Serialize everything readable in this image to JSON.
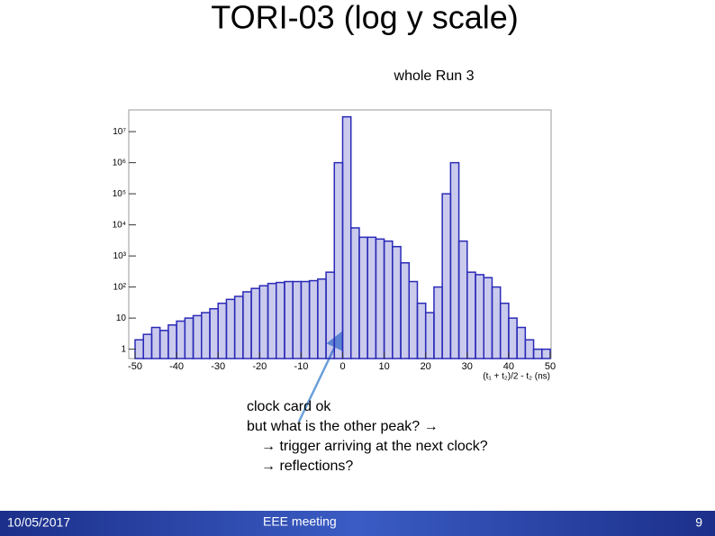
{
  "chart_data": {
    "type": "histogram",
    "title": "TORI-03 (log y scale)",
    "subtitle": "whole Run 3",
    "x_label": "(t₁ + t₂)/2 - t₂ (ns)",
    "bins": [
      -50,
      -48,
      -46,
      -44,
      -42,
      -40,
      -38,
      -36,
      -34,
      -32,
      -30,
      -28,
      -26,
      -24,
      -22,
      -20,
      -18,
      -16,
      -14,
      -12,
      -10,
      -8,
      -6,
      -4,
      -2,
      0,
      2,
      4,
      6,
      8,
      10,
      12,
      14,
      16,
      18,
      20,
      22,
      24,
      26,
      28,
      30,
      32,
      34,
      36,
      38,
      40,
      42,
      44,
      46,
      48,
      50
    ],
    "counts": [
      2,
      3,
      5,
      4,
      6,
      8,
      10,
      12,
      15,
      20,
      30,
      40,
      50,
      70,
      90,
      110,
      130,
      140,
      150,
      150,
      150,
      160,
      180,
      300,
      1000000,
      30000000,
      8000,
      4000,
      4000,
      3500,
      3000,
      2000,
      600,
      150,
      30,
      15,
      100,
      100000,
      1000000,
      3000,
      300,
      250,
      200,
      100,
      30,
      10,
      5,
      2,
      1,
      1
    ],
    "color": "#2a2ab8",
    "log_y": true,
    "xlim": [
      -50,
      50
    ],
    "xticks": [
      -50,
      -40,
      -30,
      -20,
      -10,
      0,
      10,
      20,
      30,
      40,
      50
    ],
    "ylim": [
      0.5,
      50000000
    ],
    "yticks": [
      1,
      10,
      {
        "value": 100,
        "label": "10²"
      },
      {
        "value": 1000,
        "label": "10³"
      },
      {
        "value": 10000,
        "label": "10⁴"
      },
      {
        "value": 100000,
        "label": "10⁵"
      },
      {
        "value": 1000000,
        "label": "10⁶"
      },
      {
        "value": 10000000,
        "label": "10⁷"
      }
    ],
    "grid": false,
    "annotations": [
      "clock card ok",
      "but what is the other peak? →",
      "→ trigger arriving at the next clock?",
      "→ reflections?"
    ]
  },
  "footer": {
    "date": "10/05/2017",
    "meeting": "EEE meeting",
    "page": "9"
  }
}
